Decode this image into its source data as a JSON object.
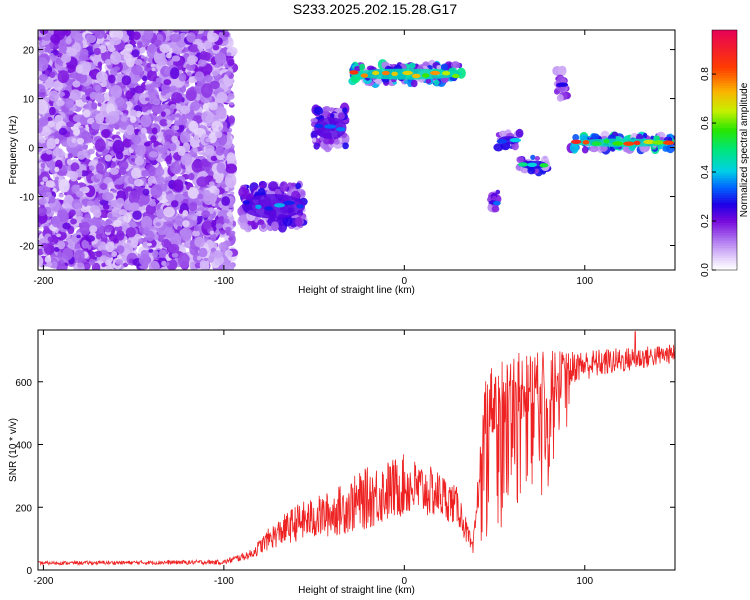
{
  "title": "S233.2025.202.15.28.G17",
  "chart_data": [
    {
      "type": "heatmap",
      "xlabel": "Height of straight line (km)",
      "ylabel": "Frequency (Hz)",
      "xlim": [
        -203,
        150
      ],
      "ylim": [
        -25,
        24
      ],
      "xticks": [
        -200,
        -100,
        0,
        100
      ],
      "yticks": [
        -20,
        -10,
        0,
        10,
        20
      ],
      "colorbar": {
        "label": "Normalized spectral amplitude",
        "range": [
          0,
          0.98
        ],
        "ticks": [
          0,
          0.2,
          0.4,
          0.6,
          0.8
        ],
        "tick_labels": [
          "0.0",
          "0.2",
          "0.4",
          "0.6",
          "0.8"
        ]
      },
      "features": [
        {
          "x_start": -203,
          "x_end": -95,
          "freq": 0,
          "freq_width": 49,
          "peak_amplitude": 0.2
        },
        {
          "x_start": -90,
          "x_end": -55,
          "freq": -12,
          "freq_width": 9,
          "peak_amplitude": 0.45
        },
        {
          "x_start": -50,
          "x_end": -32,
          "freq": 4,
          "freq_width": 8,
          "peak_amplitude": 0.45
        },
        {
          "x_start": -30,
          "x_end": 32,
          "freq": 15,
          "freq_width": 4,
          "peak_amplitude": 0.9
        },
        {
          "x_start": 48,
          "x_end": 52,
          "freq": -11,
          "freq_width": 4,
          "peak_amplitude": 0.35
        },
        {
          "x_start": 52,
          "x_end": 64,
          "freq": 1.5,
          "freq_width": 3,
          "peak_amplitude": 0.5
        },
        {
          "x_start": 64,
          "x_end": 79,
          "freq": -3.5,
          "freq_width": 3,
          "peak_amplitude": 0.55
        },
        {
          "x_start": 84,
          "x_end": 90,
          "freq": 13,
          "freq_width": 6,
          "peak_amplitude": 0.3
        },
        {
          "x_start": 92,
          "x_end": 150,
          "freq": 1,
          "freq_width": 3,
          "peak_amplitude": 0.9
        }
      ]
    },
    {
      "type": "line",
      "xlabel": "Height of straight line (km)",
      "ylabel": "SNR (10 * v/v)",
      "xlim": [
        -203,
        150
      ],
      "ylim": [
        0,
        765
      ],
      "xticks": [
        -200,
        -100,
        0,
        100
      ],
      "yticks": [
        0,
        200,
        400,
        600
      ],
      "series_color": "#ee2222",
      "envelope": [
        {
          "x": -203,
          "mean": 22,
          "spread": 10
        },
        {
          "x": -100,
          "mean": 25,
          "spread": 15
        },
        {
          "x": -85,
          "mean": 50,
          "spread": 30
        },
        {
          "x": -75,
          "mean": 100,
          "spread": 70
        },
        {
          "x": -60,
          "mean": 150,
          "spread": 120
        },
        {
          "x": -40,
          "mean": 180,
          "spread": 150
        },
        {
          "x": -20,
          "mean": 230,
          "spread": 200
        },
        {
          "x": 0,
          "mean": 270,
          "spread": 200
        },
        {
          "x": 20,
          "mean": 240,
          "spread": 150
        },
        {
          "x": 30,
          "mean": 200,
          "spread": 120
        },
        {
          "x": 38,
          "mean": 60,
          "spread": 50
        },
        {
          "x": 45,
          "mean": 520,
          "spread": 250
        },
        {
          "x": 60,
          "mean": 580,
          "spread": 220
        },
        {
          "x": 80,
          "mean": 600,
          "spread": 200
        },
        {
          "x": 95,
          "mean": 650,
          "spread": 100
        },
        {
          "x": 150,
          "mean": 690,
          "spread": 60
        }
      ],
      "peak": {
        "x": 128,
        "y": 760
      }
    }
  ]
}
